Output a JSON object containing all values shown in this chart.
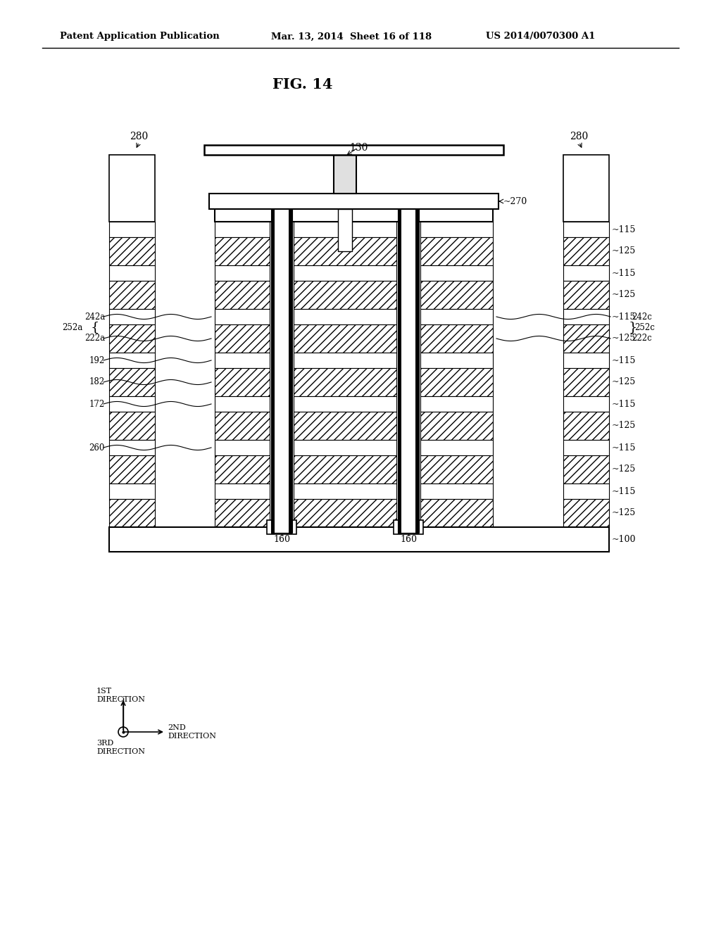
{
  "title": "FIG. 14",
  "header_left": "Patent Application Publication",
  "header_mid": "Mar. 13, 2014  Sheet 16 of 118",
  "header_right": "US 2014/0070300 A1",
  "bg_color": "#ffffff",
  "fig_width": 10.24,
  "fig_height": 13.2
}
